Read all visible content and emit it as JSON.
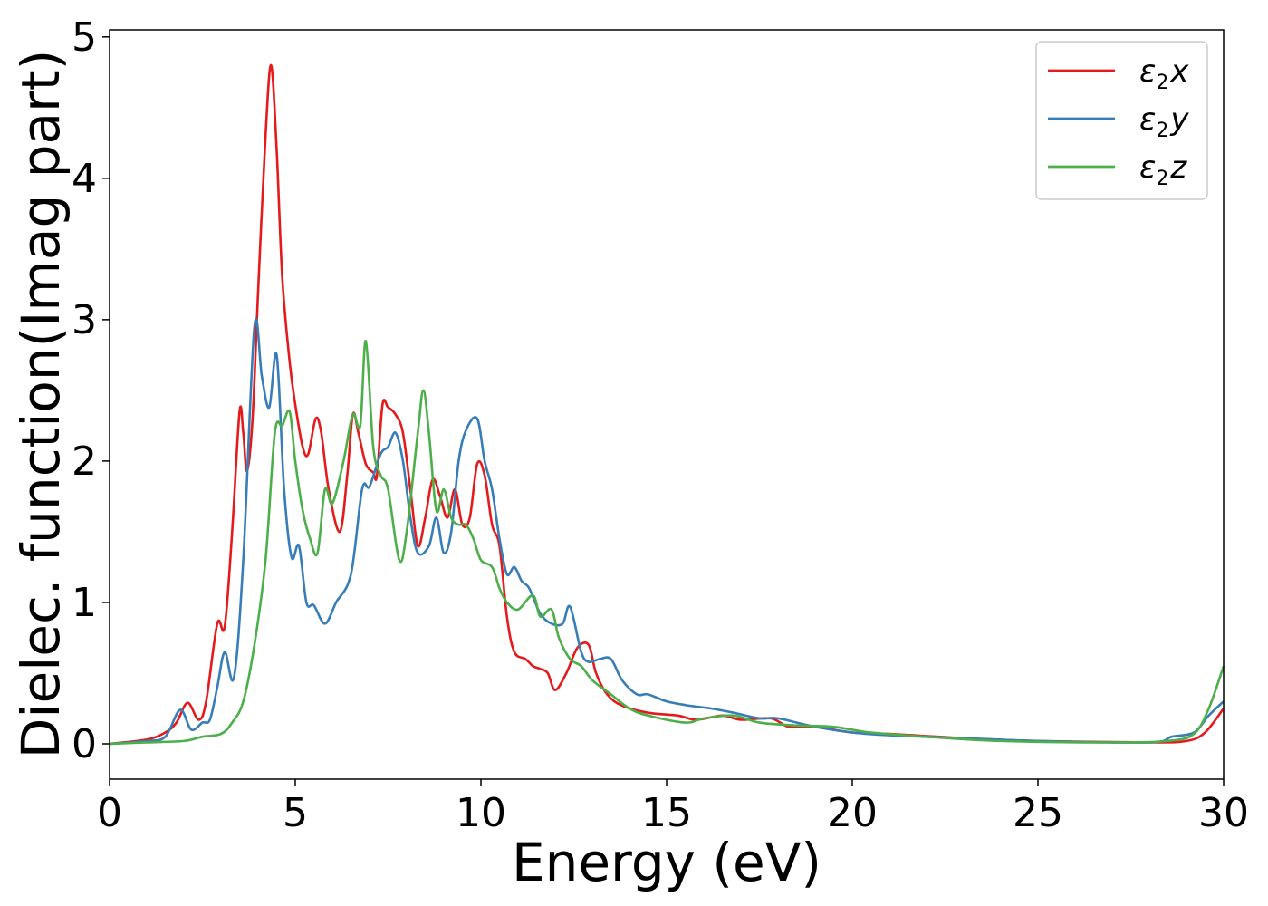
{
  "chart_data": {
    "type": "line",
    "xlabel": "Energy (eV)",
    "ylabel": "Dielec. function(Imag part)",
    "xlim": [
      0,
      30
    ],
    "ylim": [
      -0.25,
      5.05
    ],
    "x_ticks": [
      0,
      5,
      10,
      15,
      20,
      25,
      30
    ],
    "y_ticks": [
      0,
      1,
      2,
      3,
      4,
      5
    ],
    "grid": false,
    "legend_position": "top-right",
    "series": [
      {
        "name": "ε₂x",
        "legend_base": "ε",
        "legend_sub": "2",
        "legend_suffix": "x",
        "color": "#e41a1c",
        "points": [
          [
            0,
            0
          ],
          [
            1,
            0.03
          ],
          [
            1.5,
            0.08
          ],
          [
            1.8,
            0.15
          ],
          [
            2.1,
            0.29
          ],
          [
            2.4,
            0.17
          ],
          [
            2.6,
            0.3
          ],
          [
            2.9,
            0.85
          ],
          [
            3.1,
            0.83
          ],
          [
            3.3,
            1.5
          ],
          [
            3.5,
            2.35
          ],
          [
            3.6,
            2.2
          ],
          [
            3.7,
            1.93
          ],
          [
            3.85,
            2.3
          ],
          [
            4.0,
            3.2
          ],
          [
            4.2,
            4.3
          ],
          [
            4.35,
            4.8
          ],
          [
            4.5,
            4.2
          ],
          [
            4.65,
            3.3
          ],
          [
            4.85,
            2.7
          ],
          [
            5.0,
            2.4
          ],
          [
            5.2,
            2.1
          ],
          [
            5.35,
            2.05
          ],
          [
            5.55,
            2.3
          ],
          [
            5.7,
            2.2
          ],
          [
            5.9,
            1.8
          ],
          [
            6.2,
            1.5
          ],
          [
            6.4,
            1.9
          ],
          [
            6.55,
            2.33
          ],
          [
            6.7,
            2.2
          ],
          [
            6.9,
            1.98
          ],
          [
            7.1,
            1.92
          ],
          [
            7.2,
            1.9
          ],
          [
            7.35,
            2.4
          ],
          [
            7.5,
            2.38
          ],
          [
            7.7,
            2.33
          ],
          [
            7.9,
            2.2
          ],
          [
            8.1,
            1.8
          ],
          [
            8.3,
            1.4
          ],
          [
            8.5,
            1.6
          ],
          [
            8.7,
            1.87
          ],
          [
            8.9,
            1.75
          ],
          [
            9.1,
            1.6
          ],
          [
            9.3,
            1.8
          ],
          [
            9.5,
            1.55
          ],
          [
            9.7,
            1.6
          ],
          [
            9.9,
            1.98
          ],
          [
            10.1,
            1.9
          ],
          [
            10.3,
            1.55
          ],
          [
            10.5,
            1.4
          ],
          [
            10.7,
            0.9
          ],
          [
            10.9,
            0.65
          ],
          [
            11.2,
            0.6
          ],
          [
            11.4,
            0.55
          ],
          [
            11.6,
            0.53
          ],
          [
            11.8,
            0.5
          ],
          [
            12.0,
            0.38
          ],
          [
            12.3,
            0.5
          ],
          [
            12.6,
            0.68
          ],
          [
            12.9,
            0.7
          ],
          [
            13.1,
            0.5
          ],
          [
            13.4,
            0.35
          ],
          [
            13.8,
            0.27
          ],
          [
            14.5,
            0.22
          ],
          [
            15.3,
            0.2
          ],
          [
            15.8,
            0.17
          ],
          [
            16.5,
            0.2
          ],
          [
            17.0,
            0.17
          ],
          [
            17.8,
            0.18
          ],
          [
            18.3,
            0.12
          ],
          [
            19.0,
            0.12
          ],
          [
            20.0,
            0.08
          ],
          [
            21.0,
            0.07
          ],
          [
            23.0,
            0.04
          ],
          [
            25.0,
            0.02
          ],
          [
            28.0,
            0.01
          ],
          [
            29.0,
            0.02
          ],
          [
            29.5,
            0.08
          ],
          [
            30.0,
            0.25
          ]
        ]
      },
      {
        "name": "ε₂y",
        "legend_base": "ε",
        "legend_sub": "2",
        "legend_suffix": "y",
        "color": "#377eb8",
        "points": [
          [
            0,
            0
          ],
          [
            1,
            0.02
          ],
          [
            1.5,
            0.05
          ],
          [
            1.9,
            0.24
          ],
          [
            2.2,
            0.1
          ],
          [
            2.5,
            0.15
          ],
          [
            2.7,
            0.17
          ],
          [
            2.9,
            0.4
          ],
          [
            3.1,
            0.65
          ],
          [
            3.35,
            0.47
          ],
          [
            3.6,
            1.3
          ],
          [
            3.9,
            2.95
          ],
          [
            4.1,
            2.6
          ],
          [
            4.3,
            2.38
          ],
          [
            4.5,
            2.75
          ],
          [
            4.7,
            1.8
          ],
          [
            4.9,
            1.32
          ],
          [
            5.1,
            1.4
          ],
          [
            5.3,
            1.0
          ],
          [
            5.5,
            0.98
          ],
          [
            5.8,
            0.85
          ],
          [
            6.1,
            1.0
          ],
          [
            6.5,
            1.2
          ],
          [
            6.8,
            1.8
          ],
          [
            7.0,
            1.82
          ],
          [
            7.3,
            2.05
          ],
          [
            7.5,
            2.1
          ],
          [
            7.7,
            2.2
          ],
          [
            7.9,
            2.0
          ],
          [
            8.1,
            1.6
          ],
          [
            8.3,
            1.35
          ],
          [
            8.6,
            1.4
          ],
          [
            8.8,
            1.6
          ],
          [
            9.0,
            1.35
          ],
          [
            9.2,
            1.5
          ],
          [
            9.4,
            2.0
          ],
          [
            9.6,
            2.22
          ],
          [
            9.9,
            2.3
          ],
          [
            10.1,
            2.0
          ],
          [
            10.3,
            1.8
          ],
          [
            10.5,
            1.45
          ],
          [
            10.7,
            1.2
          ],
          [
            10.9,
            1.25
          ],
          [
            11.1,
            1.15
          ],
          [
            11.3,
            1.1
          ],
          [
            11.6,
            0.92
          ],
          [
            11.9,
            0.85
          ],
          [
            12.2,
            0.85
          ],
          [
            12.4,
            0.97
          ],
          [
            12.7,
            0.65
          ],
          [
            12.9,
            0.58
          ],
          [
            13.2,
            0.6
          ],
          [
            13.5,
            0.6
          ],
          [
            13.8,
            0.45
          ],
          [
            14.2,
            0.35
          ],
          [
            14.5,
            0.35
          ],
          [
            15.0,
            0.3
          ],
          [
            15.6,
            0.27
          ],
          [
            16.2,
            0.25
          ],
          [
            16.8,
            0.22
          ],
          [
            17.5,
            0.18
          ],
          [
            18.0,
            0.18
          ],
          [
            19.0,
            0.12
          ],
          [
            20.0,
            0.08
          ],
          [
            21.0,
            0.06
          ],
          [
            23.0,
            0.04
          ],
          [
            25.0,
            0.02
          ],
          [
            28.0,
            0.01
          ],
          [
            28.6,
            0.05
          ],
          [
            29.2,
            0.08
          ],
          [
            29.6,
            0.2
          ],
          [
            30.0,
            0.3
          ]
        ]
      },
      {
        "name": "ε₂z",
        "legend_base": "ε",
        "legend_sub": "2",
        "legend_suffix": "z",
        "color": "#4daf4a",
        "points": [
          [
            0,
            0
          ],
          [
            1,
            0.01
          ],
          [
            2,
            0.02
          ],
          [
            2.5,
            0.05
          ],
          [
            3.0,
            0.07
          ],
          [
            3.3,
            0.15
          ],
          [
            3.6,
            0.3
          ],
          [
            3.9,
            0.7
          ],
          [
            4.2,
            1.3
          ],
          [
            4.45,
            2.2
          ],
          [
            4.65,
            2.25
          ],
          [
            4.85,
            2.35
          ],
          [
            5.0,
            2.0
          ],
          [
            5.2,
            1.65
          ],
          [
            5.4,
            1.45
          ],
          [
            5.6,
            1.35
          ],
          [
            5.8,
            1.8
          ],
          [
            6.0,
            1.7
          ],
          [
            6.3,
            2.0
          ],
          [
            6.55,
            2.33
          ],
          [
            6.75,
            2.25
          ],
          [
            6.9,
            2.85
          ],
          [
            7.1,
            2.1
          ],
          [
            7.3,
            1.9
          ],
          [
            7.5,
            1.8
          ],
          [
            7.8,
            1.3
          ],
          [
            8.0,
            1.5
          ],
          [
            8.3,
            2.2
          ],
          [
            8.45,
            2.5
          ],
          [
            8.6,
            2.2
          ],
          [
            8.8,
            1.65
          ],
          [
            9.0,
            1.8
          ],
          [
            9.2,
            1.6
          ],
          [
            9.4,
            1.55
          ],
          [
            9.6,
            1.55
          ],
          [
            9.8,
            1.45
          ],
          [
            10.0,
            1.3
          ],
          [
            10.3,
            1.25
          ],
          [
            10.5,
            1.1
          ],
          [
            10.7,
            1.0
          ],
          [
            11.0,
            0.95
          ],
          [
            11.4,
            1.05
          ],
          [
            11.6,
            0.9
          ],
          [
            11.9,
            0.95
          ],
          [
            12.1,
            0.75
          ],
          [
            12.4,
            0.6
          ],
          [
            12.7,
            0.55
          ],
          [
            13.0,
            0.45
          ],
          [
            13.5,
            0.35
          ],
          [
            14.0,
            0.25
          ],
          [
            14.5,
            0.2
          ],
          [
            15.5,
            0.15
          ],
          [
            16.0,
            0.18
          ],
          [
            16.8,
            0.2
          ],
          [
            17.5,
            0.15
          ],
          [
            18.5,
            0.13
          ],
          [
            19.5,
            0.12
          ],
          [
            20.5,
            0.08
          ],
          [
            22.0,
            0.05
          ],
          [
            24.0,
            0.02
          ],
          [
            27.0,
            0.01
          ],
          [
            28.5,
            0.02
          ],
          [
            29.2,
            0.07
          ],
          [
            29.6,
            0.25
          ],
          [
            30.0,
            0.55
          ]
        ]
      }
    ]
  }
}
